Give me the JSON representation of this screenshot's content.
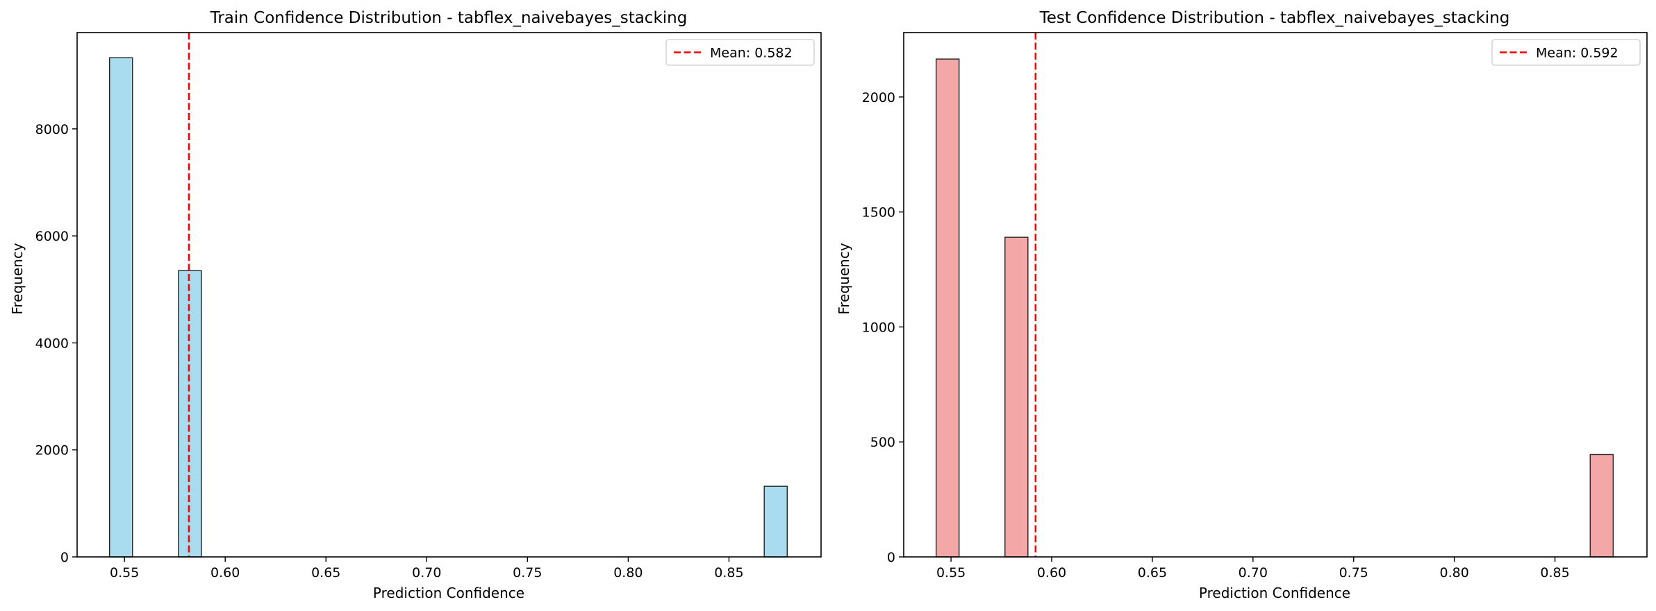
{
  "chart_data": [
    {
      "type": "bar",
      "title": "Train Confidence Distribution - tabflex_naivebayes_stacking",
      "xlabel": "Prediction Confidence",
      "ylabel": "Frequency",
      "xlim": [
        0.5265,
        0.8957
      ],
      "ylim": [
        0,
        9800
      ],
      "xticks": [
        0.55,
        0.6,
        0.65,
        0.7,
        0.75,
        0.8,
        0.85
      ],
      "xtick_labels": [
        "0.55",
        "0.60",
        "0.65",
        "0.70",
        "0.75",
        "0.80",
        "0.85"
      ],
      "yticks": [
        0,
        2000,
        4000,
        6000,
        8000
      ],
      "ytick_labels": [
        "0",
        "2000",
        "4000",
        "6000",
        "8000"
      ],
      "bin_width": 0.0114,
      "bins": [
        {
          "start": 0.5426,
          "value": 9330
        },
        {
          "start": 0.5768,
          "value": 5350
        },
        {
          "start": 0.8675,
          "value": 1320
        }
      ],
      "bar_color": "#a9dcee",
      "mean": 0.582,
      "mean_label": "Mean: 0.582",
      "mean_color": "#ff0000",
      "legend_position": "top-right",
      "grid": false
    },
    {
      "type": "bar",
      "title": "Test Confidence Distribution - tabflex_naivebayes_stacking",
      "xlabel": "Prediction Confidence",
      "ylabel": "Frequency",
      "xlim": [
        0.5265,
        0.8957
      ],
      "ylim": [
        0,
        2280
      ],
      "xticks": [
        0.55,
        0.6,
        0.65,
        0.7,
        0.75,
        0.8,
        0.85
      ],
      "xtick_labels": [
        "0.55",
        "0.60",
        "0.65",
        "0.70",
        "0.75",
        "0.80",
        "0.85"
      ],
      "yticks": [
        0,
        500,
        1000,
        1500,
        2000
      ],
      "ytick_labels": [
        "0",
        "500",
        "1000",
        "1500",
        "2000"
      ],
      "bin_width": 0.0114,
      "bins": [
        {
          "start": 0.5426,
          "value": 2165
        },
        {
          "start": 0.5768,
          "value": 1390
        },
        {
          "start": 0.8675,
          "value": 445
        }
      ],
      "bar_color": "#f3a7a7",
      "mean": 0.592,
      "mean_label": "Mean: 0.592",
      "mean_color": "#ff0000",
      "legend_position": "top-right",
      "grid": false
    }
  ]
}
